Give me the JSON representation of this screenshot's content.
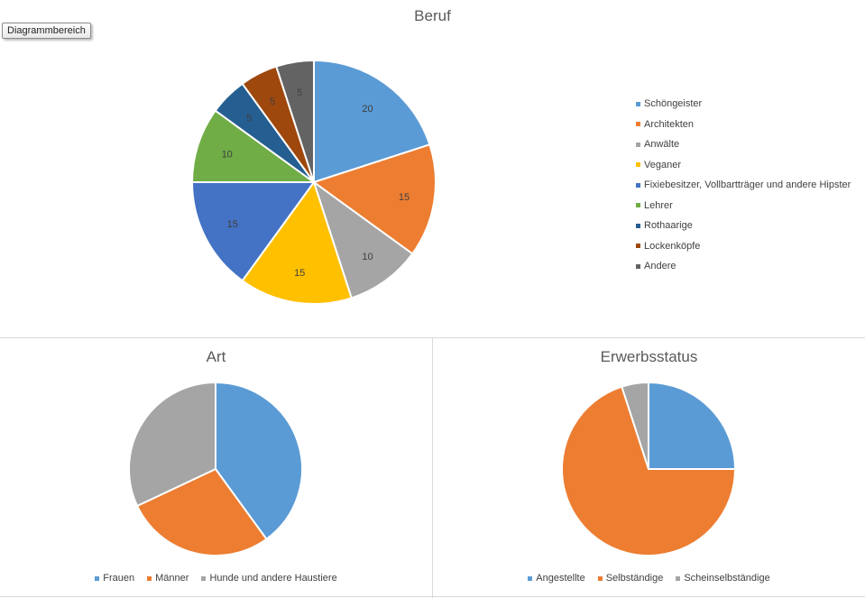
{
  "tooltip": "Diagrammbereich",
  "chart_data": [
    {
      "type": "pie",
      "title": "Beruf",
      "categories": [
        "Schöngeister",
        "Architekten",
        "Anwälte",
        "Veganer",
        "Fixiebesitzer, Vollbartträger und andere Hipster",
        "Lehrer",
        "Rothaarige",
        "Lockenköpfe",
        "Andere"
      ],
      "values": [
        20,
        15,
        10,
        15,
        15,
        10,
        5,
        5,
        5
      ],
      "data_labels": [
        "20",
        "15",
        "10",
        "15",
        "15",
        "10",
        "5",
        "5",
        "5"
      ],
      "colors": [
        "#5b9bd5",
        "#ed7d31",
        "#a5a5a5",
        "#ffc000",
        "#4472c4",
        "#70ad47",
        "#255e91",
        "#9e480e",
        "#636363"
      ],
      "legend_position": "right"
    },
    {
      "type": "pie",
      "title": "Art",
      "categories": [
        "Frauen",
        "Männer",
        "Hunde und andere Haustiere"
      ],
      "values": [
        40,
        28,
        32
      ],
      "colors": [
        "#5b9bd5",
        "#ed7d31",
        "#a5a5a5"
      ],
      "legend_position": "bottom"
    },
    {
      "type": "pie",
      "title": "Erwerbsstatus",
      "categories": [
        "Angestellte",
        "Selbständige",
        "Scheinselbständige"
      ],
      "values": [
        25,
        70,
        5
      ],
      "colors": [
        "#5b9bd5",
        "#ed7d31",
        "#a5a5a5"
      ],
      "legend_position": "bottom"
    }
  ]
}
